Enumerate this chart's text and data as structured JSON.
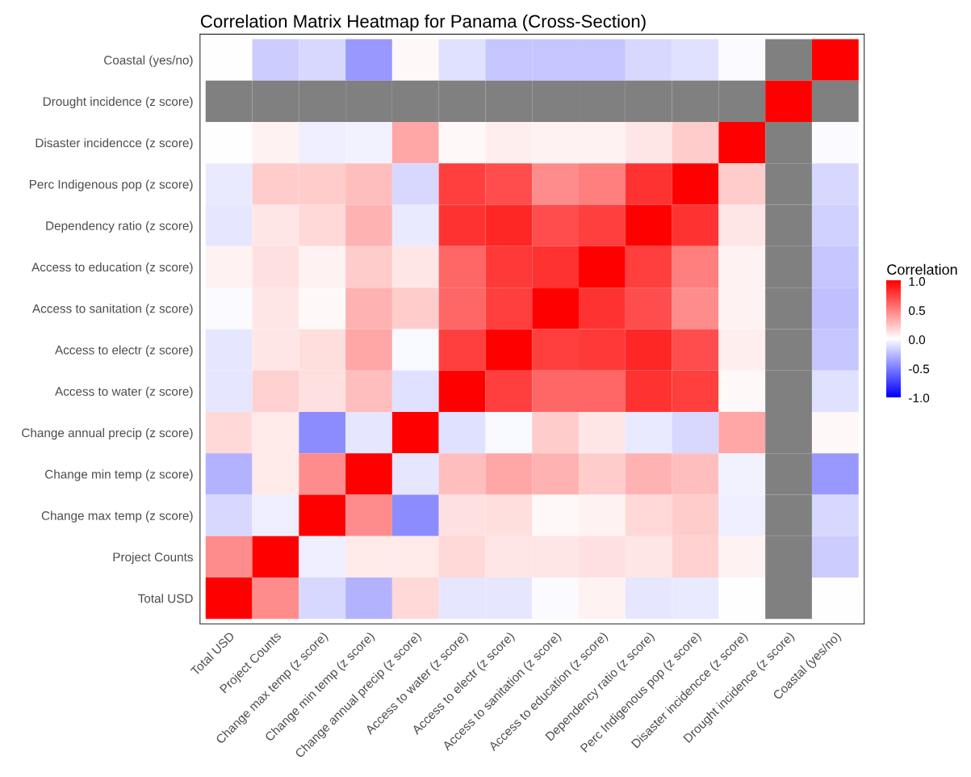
{
  "chart_data": {
    "type": "heatmap",
    "title": "Correlation Matrix Heatmap for Panama (Cross-Section)",
    "clabel": "Correlation",
    "categories": [
      "Total USD",
      "Project Counts",
      "Change max temp (z score)",
      "Change min temp (z score)",
      "Change annual precip (z score)",
      "Access to water (z score)",
      "Access to electr (z score)",
      "Access to sanitation (z score)",
      "Access to education (z score)",
      "Dependency ratio (z score)",
      "Perc Indigenous pop (z score)",
      "Disaster incidencce (z score)",
      "Drought incidence (z score)",
      "Coastal (yes/no)"
    ],
    "y_categories": [
      "Coastal (yes/no)",
      "Drought incidence (z score)",
      "Disaster incidencce (z score)",
      "Perc Indigenous pop (z score)",
      "Dependency ratio (z score)",
      "Access to education (z score)",
      "Access to sanitation (z score)",
      "Access to electr (z score)",
      "Access to water (z score)",
      "Change annual precip (z score)",
      "Change min temp (z score)",
      "Change max temp (z score)",
      "Project Counts",
      "Total USD"
    ],
    "cells": [
      [
        0.0,
        -0.2,
        -0.15,
        -0.4,
        0.03,
        -0.12,
        -0.22,
        -0.22,
        -0.22,
        -0.15,
        -0.12,
        -0.02,
        null,
        1
      ],
      [
        null,
        null,
        null,
        null,
        null,
        null,
        null,
        null,
        null,
        null,
        null,
        null,
        1,
        null
      ],
      [
        0.0,
        0.05,
        -0.07,
        -0.05,
        0.35,
        0.03,
        0.07,
        0.05,
        0.05,
        0.1,
        0.2,
        1,
        null,
        -0.02
      ],
      [
        -0.08,
        0.2,
        0.2,
        0.25,
        -0.15,
        0.75,
        0.7,
        0.45,
        0.5,
        0.8,
        1,
        0.2,
        null,
        -0.15
      ],
      [
        -0.1,
        0.1,
        0.15,
        0.3,
        -0.08,
        0.8,
        0.85,
        0.7,
        0.75,
        1,
        0.8,
        0.1,
        null,
        -0.18
      ],
      [
        0.05,
        0.12,
        0.05,
        0.2,
        0.1,
        0.6,
        0.78,
        0.8,
        1,
        0.75,
        0.5,
        0.05,
        null,
        -0.22
      ],
      [
        -0.02,
        0.1,
        0.03,
        0.3,
        0.2,
        0.6,
        0.75,
        1,
        0.8,
        0.7,
        0.45,
        0.05,
        null,
        -0.25
      ],
      [
        -0.1,
        0.1,
        0.13,
        0.35,
        -0.03,
        0.75,
        1,
        0.75,
        0.78,
        0.85,
        0.7,
        0.07,
        null,
        -0.22
      ],
      [
        -0.1,
        0.18,
        0.12,
        0.25,
        -0.12,
        1,
        0.75,
        0.6,
        0.6,
        0.8,
        0.75,
        0.03,
        null,
        -0.12
      ],
      [
        0.15,
        0.08,
        -0.45,
        -0.1,
        1,
        -0.12,
        -0.03,
        0.2,
        0.1,
        -0.08,
        -0.15,
        0.35,
        null,
        0.03
      ],
      [
        -0.3,
        0.08,
        0.45,
        1,
        -0.1,
        0.25,
        0.35,
        0.3,
        0.2,
        0.3,
        0.25,
        -0.05,
        null,
        -0.4
      ],
      [
        -0.15,
        -0.07,
        1,
        0.45,
        -0.45,
        0.12,
        0.13,
        0.03,
        0.05,
        0.15,
        0.2,
        -0.07,
        null,
        -0.15
      ],
      [
        0.45,
        1,
        -0.07,
        0.08,
        0.08,
        0.15,
        0.1,
        0.1,
        0.12,
        0.1,
        0.18,
        0.05,
        null,
        -0.2
      ],
      [
        1,
        0.45,
        -0.15,
        -0.3,
        0.15,
        -0.1,
        -0.1,
        -0.02,
        0.05,
        -0.1,
        -0.08,
        0.0,
        null,
        0.0
      ]
    ],
    "clim": [
      -1,
      1
    ],
    "cticks": [
      {
        "value": -1,
        "label": "-1.0"
      },
      {
        "value": -0.5,
        "label": "-0.5"
      },
      {
        "value": 0,
        "label": "0.0"
      },
      {
        "value": 0.5,
        "label": "0.5"
      },
      {
        "value": 1,
        "label": "1.0"
      }
    ]
  }
}
